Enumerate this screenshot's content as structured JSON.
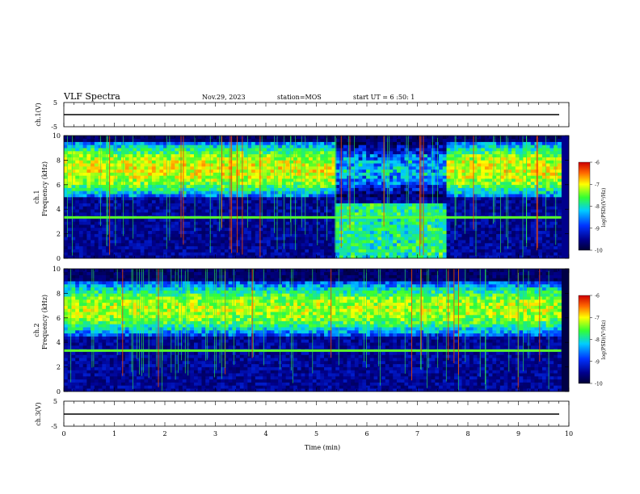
{
  "header": {
    "title": "VLF Spectra",
    "date": "Nov.29, 2023",
    "station": "station=MOS",
    "start": "start UT =  6 :50: 1"
  },
  "colorbar": {
    "label": "log(PSD)(V²/Hz)",
    "ticks": [
      "-6",
      "-7",
      "-8",
      "-9",
      "-10"
    ]
  },
  "colors": {
    "scale": [
      "#000033",
      "#00008c",
      "#0033ff",
      "#00ccff",
      "#33ff33",
      "#ffff00",
      "#ff6600",
      "#cc0000"
    ]
  },
  "chart_data": [
    {
      "type": "line",
      "name": "ch1-voltage",
      "ylabel": "ch.1(V)",
      "ylim": [
        -5,
        5
      ],
      "yticks": [
        "5",
        "-5"
      ],
      "x": [
        0,
        10
      ],
      "series": [
        {
          "values": [
            0,
            0
          ]
        }
      ],
      "xlim": [
        0,
        10
      ]
    },
    {
      "type": "heatmap",
      "name": "ch1-spectrogram",
      "ylabel": "ch.1\nFrequency (kHz)",
      "ylabel_lines": [
        "ch.1",
        "Frequency (kHz)"
      ],
      "ylim": [
        0,
        10
      ],
      "yticks": [
        "0",
        "2",
        "4",
        "6",
        "8",
        "10"
      ],
      "xlim": [
        0,
        9.85
      ],
      "zlim": [
        -10,
        -6
      ],
      "dense_band_khz": [
        5,
        9.5
      ],
      "band_level": -6.7,
      "line_3_3khz": -7.6,
      "calm_interval_min": [
        5.4,
        7.6
      ]
    },
    {
      "type": "heatmap",
      "name": "ch2-spectrogram",
      "ylabel": "ch.2\nFrequency (kHz)",
      "ylabel_lines": [
        "ch.2",
        "Frequency (kHz)"
      ],
      "ylim": [
        0,
        10
      ],
      "yticks": [
        "0",
        "2",
        "4",
        "6",
        "8",
        "10"
      ],
      "xlim": [
        0,
        9.85
      ],
      "zlim": [
        -10,
        -6
      ],
      "dense_band_khz": [
        4.5,
        9
      ],
      "band_level": -6.9,
      "line_3_3khz": -7.6
    },
    {
      "type": "line",
      "name": "ch3-voltage",
      "ylabel": "ch.3(V)",
      "ylim": [
        -5,
        5
      ],
      "yticks": [
        "5",
        "-5"
      ],
      "x": [
        0,
        10
      ],
      "series": [
        {
          "values": [
            0,
            0
          ]
        }
      ],
      "xlim": [
        0,
        10
      ]
    }
  ],
  "xaxis": {
    "label": "Time (min)",
    "ticks": [
      "0",
      "1",
      "2",
      "3",
      "4",
      "5",
      "6",
      "7",
      "8",
      "9",
      "10"
    ],
    "range": [
      0,
      10
    ]
  }
}
